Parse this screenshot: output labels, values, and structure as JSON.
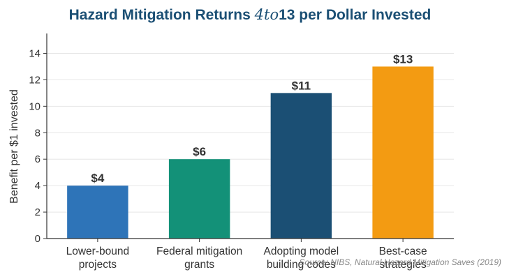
{
  "chart_data": {
    "type": "bar",
    "title": {
      "prefix": "Hazard Mitigation Returns ",
      "math": "4to",
      "suffix": "13 per Dollar Invested"
    },
    "ylabel": "Benefit per $1 invested",
    "xlabel": "",
    "ylim": [
      0,
      15.5
    ],
    "yticks": [
      0,
      2,
      4,
      6,
      8,
      10,
      12,
      14
    ],
    "grid": true,
    "categories": [
      [
        "Lower-bound",
        "projects"
      ],
      [
        "Federal mitigation",
        "grants"
      ],
      [
        "Adopting model",
        "building codes"
      ],
      [
        "Best-case",
        "strategies"
      ]
    ],
    "values": [
      4,
      6,
      11,
      13
    ],
    "data_labels": [
      "$4",
      "$6",
      "$11",
      "$13"
    ],
    "colors": [
      "#2e74b8",
      "#139178",
      "#1b4f74",
      "#f39b12"
    ],
    "source": "Source: NIBS, Natural Hazard Mitigation Saves (2019)"
  },
  "style": {
    "title_color": "#1b4f74",
    "text_color": "#333333",
    "grid_color": "#e6e6e6",
    "source_color": "#888888"
  }
}
